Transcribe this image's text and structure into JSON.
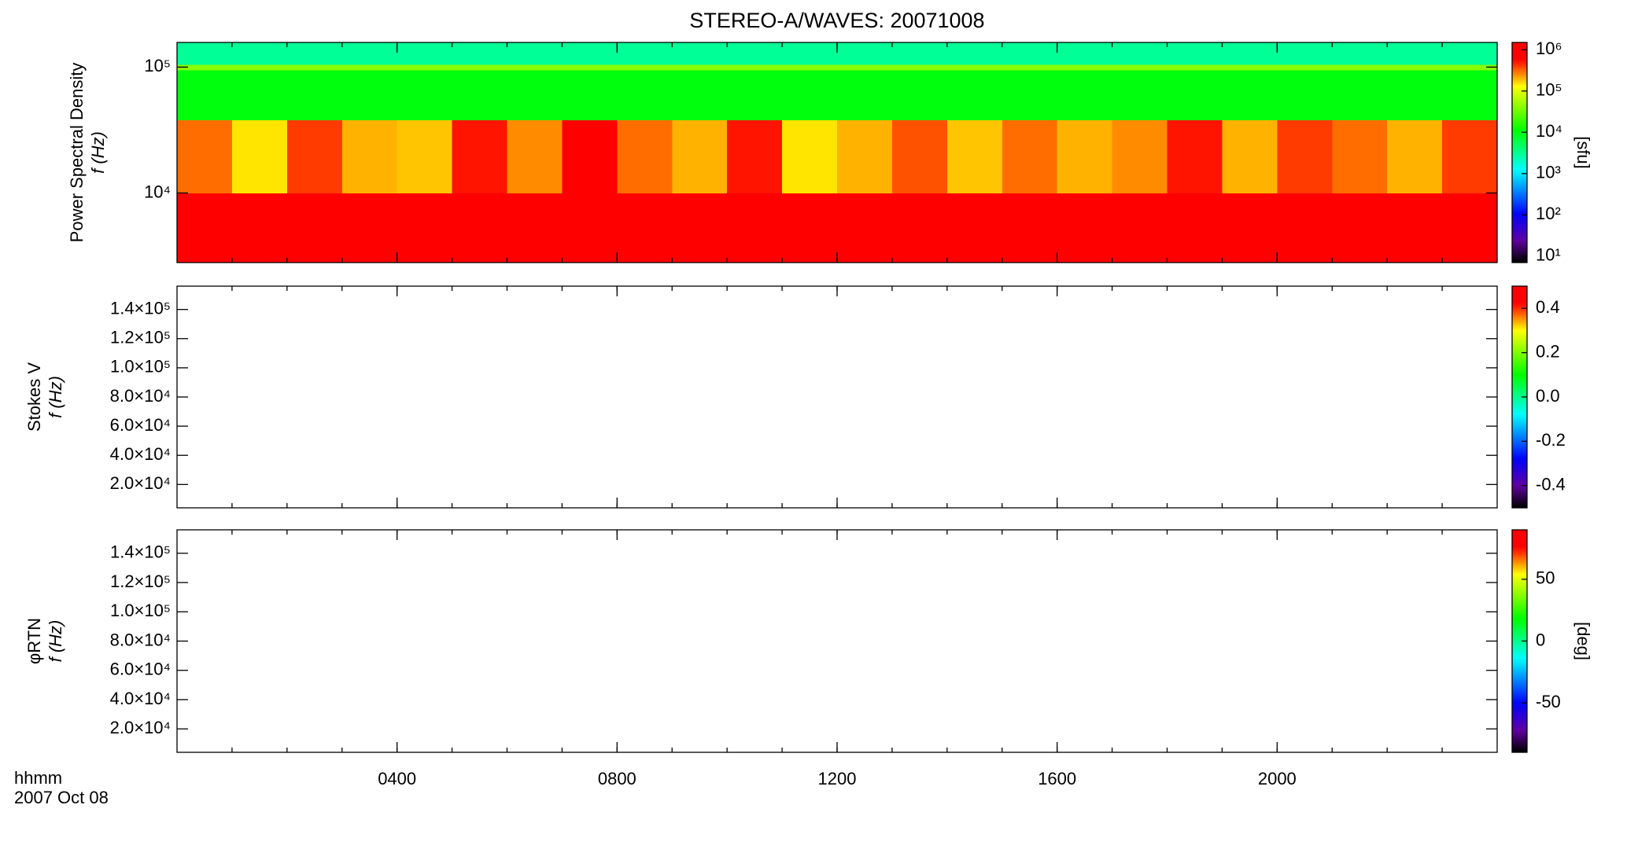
{
  "chart_data": [
    {
      "type": "heatmap",
      "title": "STEREO-A/WAVES: 20071008",
      "ylabel": [
        "Power Spectral Density",
        "f (Hz)"
      ],
      "ylog": true,
      "ylim": [
        2800,
        157000
      ],
      "yticks": [
        {
          "value": 10000,
          "label": "10⁴"
        },
        {
          "value": 100000,
          "label": "10⁵"
        }
      ],
      "x": [
        0,
        1,
        2,
        3,
        4,
        5,
        6,
        7,
        8,
        9,
        10,
        11,
        12,
        13,
        14,
        15,
        16,
        17,
        18,
        19,
        20,
        21,
        22,
        23,
        24
      ],
      "y": [
        2800,
        10000,
        38000,
        95000,
        105000,
        157000
      ],
      "z": [
        [
          1000000,
          1000000,
          1000000,
          1000000,
          1000000,
          1000000,
          1000000,
          1000000,
          1000000,
          1000000,
          1000000,
          1000000,
          1000000,
          1000000,
          1000000,
          1000000,
          1000000,
          1000000,
          1000000,
          1000000,
          1000000,
          1000000,
          1000000,
          1000000
        ],
        [
          300000,
          150000,
          400000,
          200000,
          180000,
          500000,
          250000,
          600000,
          300000,
          200000,
          500000,
          150000,
          200000,
          350000,
          180000,
          300000,
          200000,
          250000,
          500000,
          200000,
          400000,
          300000,
          200000,
          400000
        ],
        [
          10000,
          10000,
          10000,
          10000,
          10000,
          10000,
          10000,
          10000,
          10000,
          10000,
          10000,
          10000,
          10000,
          10000,
          10000,
          10000,
          10000,
          10000,
          10000,
          10000,
          10000,
          10000,
          10000,
          10000
        ],
        [
          40000,
          40000,
          40000,
          40000,
          40000,
          40000,
          40000,
          40000,
          40000,
          40000,
          40000,
          40000,
          40000,
          40000,
          40000,
          40000,
          40000,
          40000,
          40000,
          40000,
          40000,
          40000,
          40000,
          40000
        ],
        [
          3000,
          3000,
          3000,
          3000,
          3000,
          3000,
          3000,
          3000,
          3000,
          3000,
          3000,
          3000,
          3000,
          3000,
          3000,
          3000,
          3000,
          3000,
          3000,
          3000,
          3000,
          3000,
          3000,
          3000
        ]
      ],
      "colormap": "rainbow",
      "zlog": true,
      "zlim": [
        7,
        1500000
      ],
      "zticks": [
        {
          "value": 10,
          "label": "10¹"
        },
        {
          "value": 100,
          "label": "10²"
        },
        {
          "value": 1000,
          "label": "10³"
        },
        {
          "value": 10000,
          "label": "10⁴"
        },
        {
          "value": 100000,
          "label": "10⁵"
        },
        {
          "value": 1000000,
          "label": "10⁶"
        }
      ],
      "zlabel": "[sfu]"
    },
    {
      "type": "heatmap",
      "ylabel": [
        "Stokes V",
        "f (Hz)"
      ],
      "ylog": false,
      "ylim": [
        4000,
        156000
      ],
      "yticks": [
        {
          "value": 20000,
          "label": "2.0×10⁴"
        },
        {
          "value": 40000,
          "label": "4.0×10⁴"
        },
        {
          "value": 60000,
          "label": "6.0×10⁴"
        },
        {
          "value": 80000,
          "label": "8.0×10⁴"
        },
        {
          "value": 100000,
          "label": "1.0×10⁵"
        },
        {
          "value": 120000,
          "label": "1.2×10⁵"
        },
        {
          "value": 140000,
          "label": "1.4×10⁵"
        }
      ],
      "colormap": "rainbow",
      "zlog": false,
      "zlim": [
        -0.5,
        0.5
      ],
      "zticks": [
        -0.4,
        -0.2,
        {
          "value": 0,
          "label": "0.0"
        },
        0.2,
        0.4
      ]
    },
    {
      "type": "heatmap",
      "ylabel": [
        "φRTN",
        "f (Hz)"
      ],
      "ylog": false,
      "ylim": [
        4000,
        156000
      ],
      "yticks": [
        {
          "value": 20000,
          "label": "2.0×10⁴"
        },
        {
          "value": 40000,
          "label": "4.0×10⁴"
        },
        {
          "value": 60000,
          "label": "6.0×10⁴"
        },
        {
          "value": 80000,
          "label": "8.0×10⁴"
        },
        {
          "value": 100000,
          "label": "1.0×10⁵"
        },
        {
          "value": 120000,
          "label": "1.2×10⁵"
        },
        {
          "value": 140000,
          "label": "1.4×10⁵"
        }
      ],
      "colormap": "rainbow",
      "zlog": false,
      "zlim": [
        -90,
        90
      ],
      "zticks": [
        -50,
        0,
        50
      ],
      "zlabel": "[deg]",
      "xlim": [
        0,
        24
      ],
      "xticks": [
        {
          "value": 4,
          "label": "0400"
        },
        {
          "value": 8,
          "label": "0800"
        },
        {
          "value": 12,
          "label": "1200"
        },
        {
          "value": 16,
          "label": "1600"
        },
        {
          "value": 20,
          "label": "2000"
        }
      ],
      "xlabel": "hhmm",
      "date_label": "2007 Oct 08"
    }
  ]
}
